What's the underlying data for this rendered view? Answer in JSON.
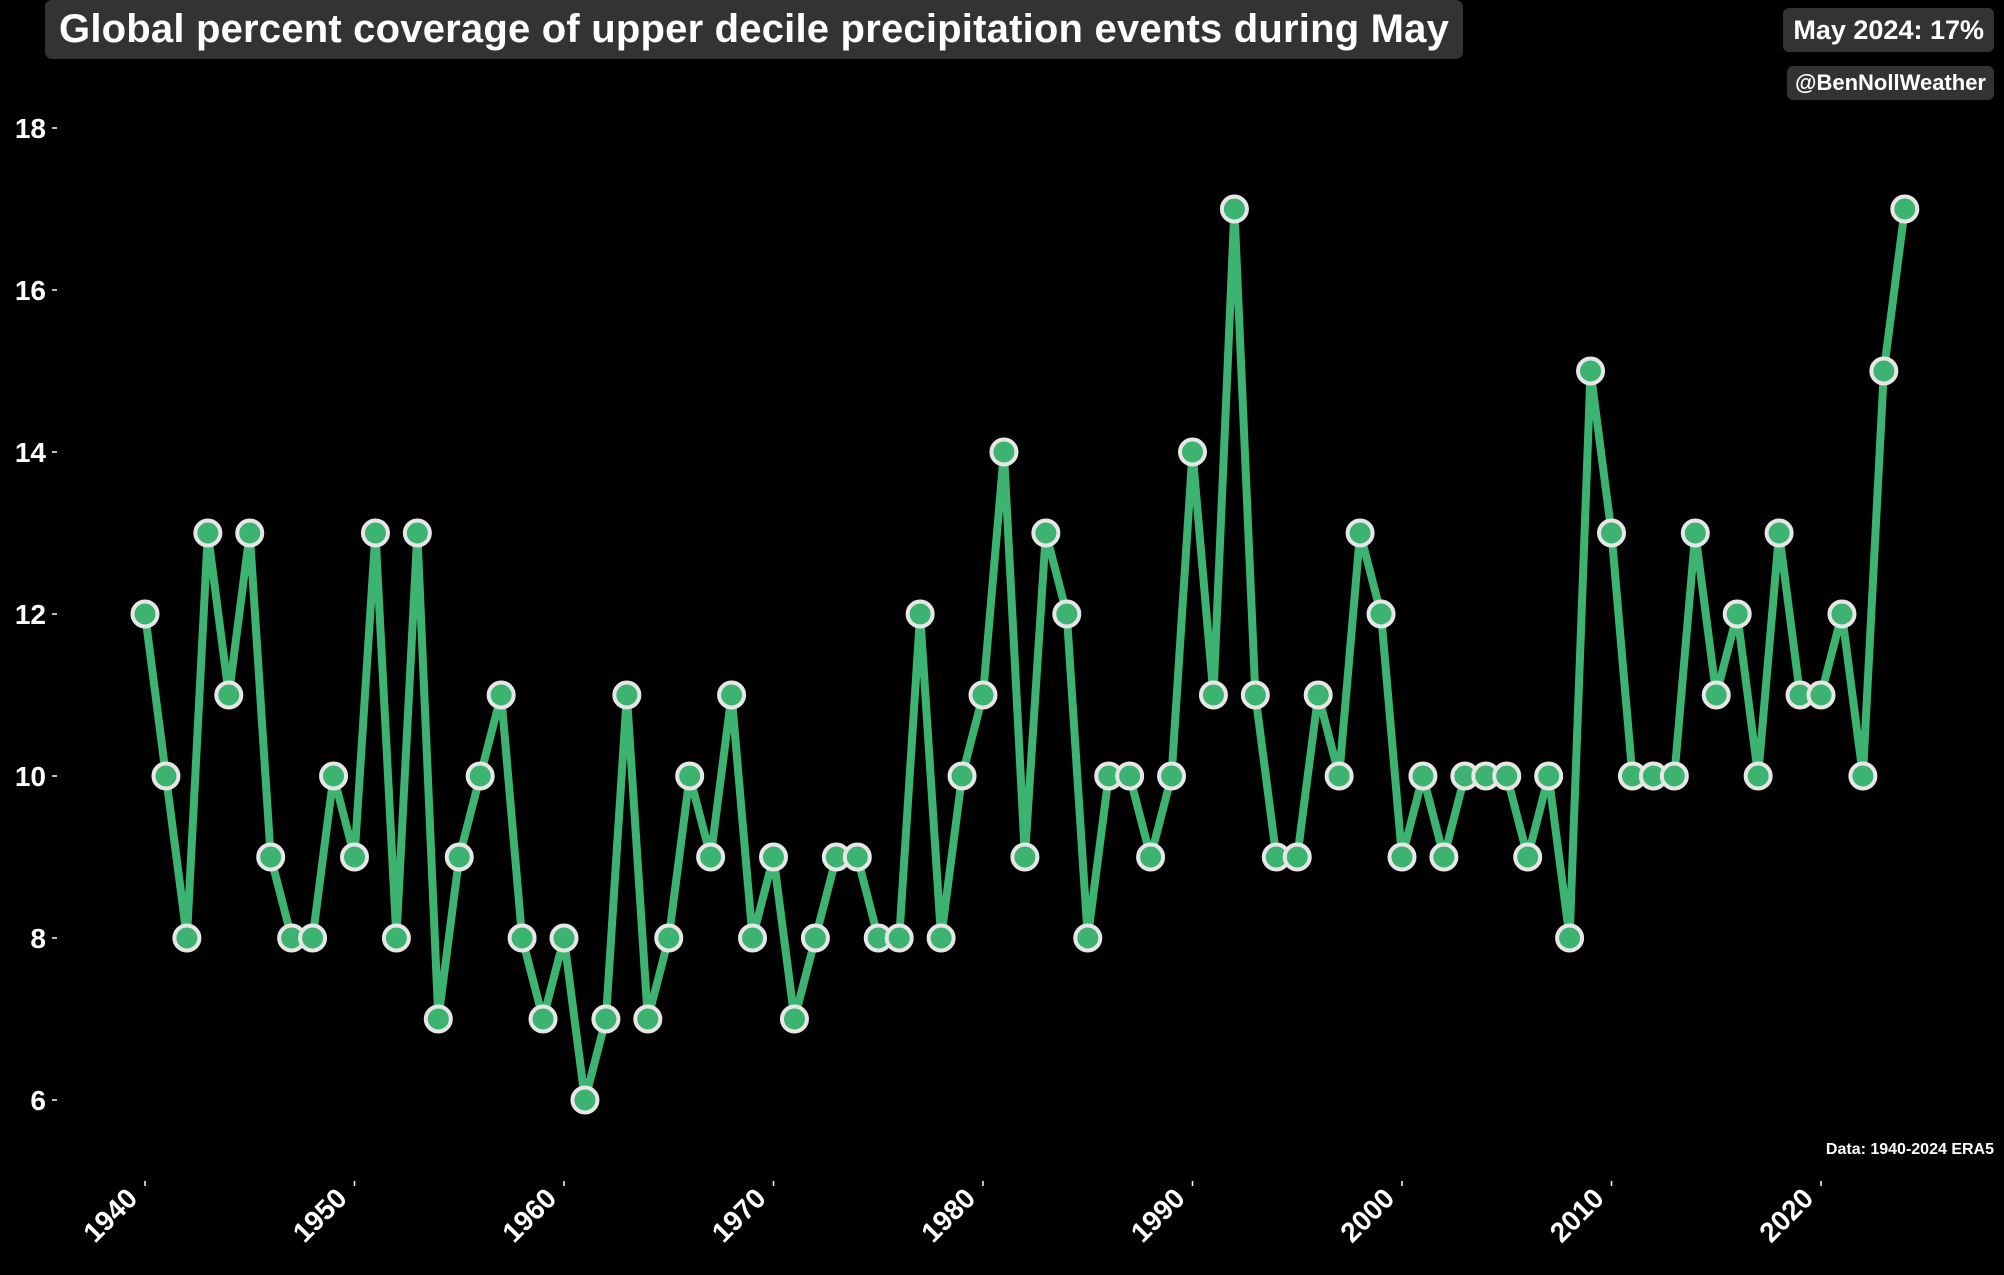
{
  "title": "Global percent coverage of upper decile precipitation events during May",
  "latest_badge": "May 2024: 17%",
  "credit": "@BenNollWeather",
  "source_note": "Data: 1940-2024 ERA5",
  "colors": {
    "background": "#000000",
    "line": "#3cb371",
    "marker_fill": "#3cb371",
    "marker_edge": "#e6e6e6",
    "title_box": "#333333"
  },
  "chart_data": {
    "type": "line",
    "title": "Global percent coverage of upper decile precipitation events during May",
    "xlabel": "",
    "ylabel": "",
    "x": [
      1940,
      1941,
      1942,
      1943,
      1944,
      1945,
      1946,
      1947,
      1948,
      1949,
      1950,
      1951,
      1952,
      1953,
      1954,
      1955,
      1956,
      1957,
      1958,
      1959,
      1960,
      1961,
      1962,
      1963,
      1964,
      1965,
      1966,
      1967,
      1968,
      1969,
      1970,
      1971,
      1972,
      1973,
      1974,
      1975,
      1976,
      1977,
      1978,
      1979,
      1980,
      1981,
      1982,
      1983,
      1984,
      1985,
      1986,
      1987,
      1988,
      1989,
      1990,
      1991,
      1992,
      1993,
      1994,
      1995,
      1996,
      1997,
      1998,
      1999,
      2000,
      2001,
      2002,
      2003,
      2004,
      2005,
      2006,
      2007,
      2008,
      2009,
      2010,
      2011,
      2012,
      2013,
      2014,
      2015,
      2016,
      2017,
      2018,
      2019,
      2020,
      2021,
      2022,
      2023,
      2024
    ],
    "series": [
      {
        "values": [
          12,
          10,
          8,
          13,
          11,
          13,
          9,
          8,
          8,
          10,
          9,
          13,
          8,
          13,
          7,
          9,
          10,
          11,
          8,
          7,
          8,
          6,
          7,
          11,
          7,
          8,
          10,
          9,
          11,
          8,
          9,
          7,
          8,
          9,
          9,
          8,
          8,
          12,
          8,
          10,
          11,
          14,
          9,
          13,
          12,
          8,
          10,
          10,
          9,
          10,
          14,
          11,
          17,
          11,
          9,
          9,
          11,
          10,
          13,
          12,
          9,
          10,
          9,
          10,
          10,
          10,
          9,
          10,
          8,
          15,
          13,
          10,
          10,
          10,
          13,
          11,
          12,
          10,
          13,
          11,
          11,
          12,
          10,
          15,
          17
        ]
      }
    ],
    "xticks": [
      1940,
      1950,
      1960,
      1970,
      1980,
      1990,
      2000,
      2010,
      2020
    ],
    "yticks": [
      6,
      8,
      10,
      12,
      14,
      16,
      18
    ],
    "xlim": [
      1934,
      2028
    ],
    "ylim": [
      5,
      19
    ],
    "grid": false,
    "legend": "none"
  }
}
